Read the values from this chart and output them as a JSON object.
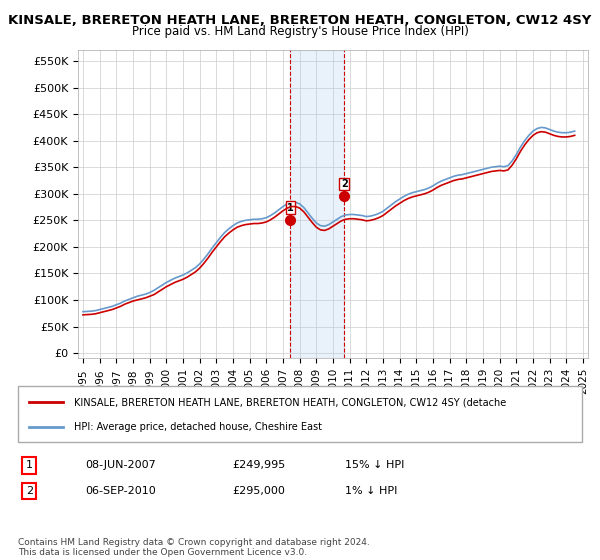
{
  "title": "KINSALE, BRERETON HEATH LANE, BRERETON HEATH, CONGLETON, CW12 4SY",
  "subtitle": "Price paid vs. HM Land Registry's House Price Index (HPI)",
  "ylabel_prefix": "£",
  "yticks": [
    0,
    50000,
    100000,
    150000,
    200000,
    250000,
    300000,
    350000,
    400000,
    450000,
    500000,
    550000
  ],
  "ytick_labels": [
    "£0",
    "£50K",
    "£100K",
    "£150K",
    "£200K",
    "£250K",
    "£300K",
    "£350K",
    "£400K",
    "£450K",
    "£500K",
    "£550K"
  ],
  "xlim_start": 1995,
  "xlim_end": 2025,
  "xticks": [
    1995,
    1996,
    1997,
    1998,
    1999,
    2000,
    2001,
    2002,
    2003,
    2004,
    2005,
    2006,
    2007,
    2008,
    2009,
    2010,
    2011,
    2012,
    2013,
    2014,
    2015,
    2016,
    2017,
    2018,
    2019,
    2020,
    2021,
    2022,
    2023,
    2024,
    2025
  ],
  "hpi_color": "#6699cc",
  "price_color": "#cc0000",
  "marker_color": "#cc0000",
  "vline_color": "#cc0000",
  "shade_color": "#aaccee",
  "transaction1_x": 2007.44,
  "transaction1_y": 249995,
  "transaction2_x": 2010.67,
  "transaction2_y": 295000,
  "legend_label1": "KINSALE, BRERETON HEATH LANE, BRERETON HEATH, CONGLETON, CW12 4SY (detache",
  "legend_label2": "HPI: Average price, detached house, Cheshire East",
  "table_row1": [
    "1",
    "08-JUN-2007",
    "£249,995",
    "15% ↓ HPI"
  ],
  "table_row2": [
    "2",
    "06-SEP-2010",
    "£295,000",
    "1% ↓ HPI"
  ],
  "copyright_text": "Contains HM Land Registry data © Crown copyright and database right 2024.\nThis data is licensed under the Open Government Licence v3.0.",
  "hpi_data": {
    "years": [
      1995.0,
      1995.25,
      1995.5,
      1995.75,
      1996.0,
      1996.25,
      1996.5,
      1996.75,
      1997.0,
      1997.25,
      1997.5,
      1997.75,
      1998.0,
      1998.25,
      1998.5,
      1998.75,
      1999.0,
      1999.25,
      1999.5,
      1999.75,
      2000.0,
      2000.25,
      2000.5,
      2000.75,
      2001.0,
      2001.25,
      2001.5,
      2001.75,
      2002.0,
      2002.25,
      2002.5,
      2002.75,
      2003.0,
      2003.25,
      2003.5,
      2003.75,
      2004.0,
      2004.25,
      2004.5,
      2004.75,
      2005.0,
      2005.25,
      2005.5,
      2005.75,
      2006.0,
      2006.25,
      2006.5,
      2006.75,
      2007.0,
      2007.25,
      2007.5,
      2007.75,
      2008.0,
      2008.25,
      2008.5,
      2008.75,
      2009.0,
      2009.25,
      2009.5,
      2009.75,
      2010.0,
      2010.25,
      2010.5,
      2010.75,
      2011.0,
      2011.25,
      2011.5,
      2011.75,
      2012.0,
      2012.25,
      2012.5,
      2012.75,
      2013.0,
      2013.25,
      2013.5,
      2013.75,
      2014.0,
      2014.25,
      2014.5,
      2014.75,
      2015.0,
      2015.25,
      2015.5,
      2015.75,
      2016.0,
      2016.25,
      2016.5,
      2016.75,
      2017.0,
      2017.25,
      2017.5,
      2017.75,
      2018.0,
      2018.25,
      2018.5,
      2018.75,
      2019.0,
      2019.25,
      2019.5,
      2019.75,
      2020.0,
      2020.25,
      2020.5,
      2020.75,
      2021.0,
      2021.25,
      2021.5,
      2021.75,
      2022.0,
      2022.25,
      2022.5,
      2022.75,
      2023.0,
      2023.25,
      2023.5,
      2023.75,
      2024.0,
      2024.25,
      2024.5
    ],
    "values": [
      78000,
      78500,
      79000,
      80000,
      82000,
      84000,
      86000,
      88000,
      91000,
      94000,
      98000,
      101000,
      104000,
      107000,
      109000,
      111000,
      114000,
      118000,
      123000,
      128000,
      133000,
      137000,
      141000,
      144000,
      147000,
      151000,
      156000,
      161000,
      168000,
      177000,
      187000,
      198000,
      208000,
      218000,
      227000,
      234000,
      240000,
      245000,
      248000,
      250000,
      251000,
      252000,
      252000,
      253000,
      255000,
      259000,
      264000,
      270000,
      276000,
      281000,
      284000,
      284000,
      281000,
      274000,
      264000,
      254000,
      245000,
      240000,
      239000,
      242000,
      247000,
      252000,
      257000,
      260000,
      261000,
      261000,
      260000,
      259000,
      257000,
      258000,
      260000,
      263000,
      267000,
      273000,
      279000,
      285000,
      290000,
      295000,
      299000,
      302000,
      304000,
      306000,
      308000,
      311000,
      315000,
      320000,
      324000,
      327000,
      330000,
      333000,
      335000,
      336000,
      338000,
      340000,
      342000,
      344000,
      346000,
      348000,
      350000,
      351000,
      352000,
      351000,
      353000,
      362000,
      374000,
      388000,
      400000,
      410000,
      418000,
      423000,
      425000,
      424000,
      421000,
      418000,
      416000,
      415000,
      415000,
      416000,
      418000
    ]
  },
  "price_data": {
    "years": [
      1995.0,
      1995.25,
      1995.5,
      1995.75,
      1996.0,
      1996.25,
      1996.5,
      1996.75,
      1997.0,
      1997.25,
      1997.5,
      1997.75,
      1998.0,
      1998.25,
      1998.5,
      1998.75,
      1999.0,
      1999.25,
      1999.5,
      1999.75,
      2000.0,
      2000.25,
      2000.5,
      2000.75,
      2001.0,
      2001.25,
      2001.5,
      2001.75,
      2002.0,
      2002.25,
      2002.5,
      2002.75,
      2003.0,
      2003.25,
      2003.5,
      2003.75,
      2004.0,
      2004.25,
      2004.5,
      2004.75,
      2005.0,
      2005.25,
      2005.5,
      2005.75,
      2006.0,
      2006.25,
      2006.5,
      2006.75,
      2007.0,
      2007.25,
      2007.5,
      2007.75,
      2008.0,
      2008.25,
      2008.5,
      2008.75,
      2009.0,
      2009.25,
      2009.5,
      2009.75,
      2010.0,
      2010.25,
      2010.5,
      2010.75,
      2011.0,
      2011.25,
      2011.5,
      2011.75,
      2012.0,
      2012.25,
      2012.5,
      2012.75,
      2013.0,
      2013.25,
      2013.5,
      2013.75,
      2014.0,
      2014.25,
      2014.5,
      2014.75,
      2015.0,
      2015.25,
      2015.5,
      2015.75,
      2016.0,
      2016.25,
      2016.5,
      2016.75,
      2017.0,
      2017.25,
      2017.5,
      2017.75,
      2018.0,
      2018.25,
      2018.5,
      2018.75,
      2019.0,
      2019.25,
      2019.5,
      2019.75,
      2020.0,
      2020.25,
      2020.5,
      2020.75,
      2021.0,
      2021.25,
      2021.5,
      2021.75,
      2022.0,
      2022.25,
      2022.5,
      2022.75,
      2023.0,
      2023.25,
      2023.5,
      2023.75,
      2024.0,
      2024.25,
      2024.5
    ],
    "values": [
      72000,
      72500,
      73000,
      74000,
      76000,
      78000,
      80000,
      82000,
      85000,
      88000,
      92000,
      95000,
      98000,
      100000,
      102000,
      104000,
      107000,
      110000,
      115000,
      120000,
      125000,
      129000,
      133000,
      136000,
      139000,
      143000,
      148000,
      153000,
      160000,
      169000,
      179000,
      190000,
      200000,
      210000,
      219000,
      226000,
      232000,
      237000,
      240000,
      242000,
      243000,
      244000,
      244000,
      245000,
      247000,
      251000,
      256000,
      262000,
      268000,
      273000,
      276000,
      276000,
      273000,
      266000,
      256000,
      246000,
      237000,
      232000,
      231000,
      234000,
      239000,
      244000,
      249000,
      252000,
      253000,
      253000,
      252000,
      251000,
      249000,
      250000,
      252000,
      255000,
      259000,
      265000,
      271000,
      277000,
      282000,
      287000,
      291000,
      294000,
      296000,
      298000,
      300000,
      303000,
      307000,
      312000,
      316000,
      319000,
      322000,
      325000,
      327000,
      328000,
      330000,
      332000,
      334000,
      336000,
      338000,
      340000,
      342000,
      343000,
      344000,
      343000,
      345000,
      354000,
      366000,
      380000,
      392000,
      402000,
      410000,
      415000,
      417000,
      416000,
      413000,
      410000,
      408000,
      407000,
      407000,
      408000,
      410000
    ]
  }
}
